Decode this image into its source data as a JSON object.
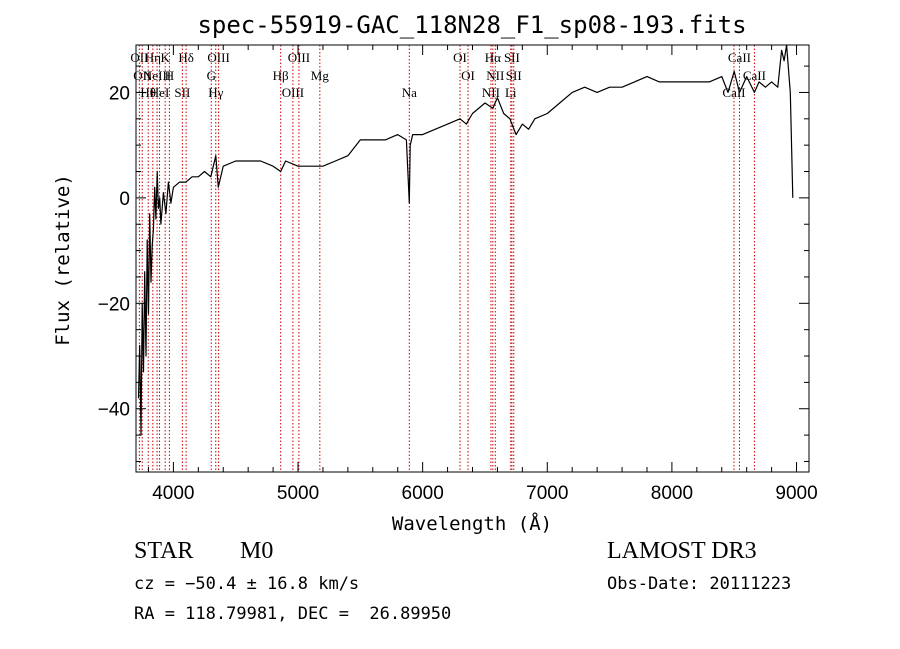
{
  "chart_data": {
    "type": "line",
    "title": "spec-55919-GAC_118N28_F1_sp08-193.fits",
    "xlabel": "Wavelength (Å)",
    "ylabel": "Flux (relative)",
    "xlim": [
      3700,
      9100
    ],
    "ylim": [
      -52,
      29
    ],
    "xticks": [
      4000,
      5000,
      6000,
      7000,
      8000,
      9000
    ],
    "xtick_labels": [
      "4000",
      "5000",
      "6000",
      "7000",
      "8000",
      "9000"
    ],
    "yticks": [
      -40,
      -20,
      0,
      20
    ],
    "ytick_labels": [
      "−40",
      "−20",
      "0",
      "20"
    ],
    "series": [
      {
        "name": "flux",
        "color": "#000000",
        "x": [
          3720,
          3730,
          3740,
          3750,
          3760,
          3770,
          3780,
          3790,
          3800,
          3810,
          3820,
          3830,
          3840,
          3850,
          3860,
          3870,
          3880,
          3890,
          3900,
          3920,
          3940,
          3960,
          3980,
          4000,
          4050,
          4100,
          4150,
          4200,
          4250,
          4300,
          4340,
          4360,
          4400,
          4500,
          4600,
          4700,
          4800,
          4861,
          4900,
          5000,
          5100,
          5200,
          5300,
          5400,
          5500,
          5600,
          5700,
          5800,
          5870,
          5893,
          5900,
          5920,
          6000,
          6100,
          6200,
          6300,
          6350,
          6400,
          6500,
          6563,
          6600,
          6650,
          6700,
          6750,
          6800,
          6850,
          6900,
          7000,
          7100,
          7200,
          7300,
          7400,
          7500,
          7600,
          7700,
          7800,
          7900,
          8000,
          8100,
          8200,
          8300,
          8400,
          8450,
          8500,
          8542,
          8600,
          8662,
          8700,
          8750,
          8800,
          8850,
          8880,
          8900,
          8920,
          8950,
          8970
        ],
        "y": [
          -38,
          -28,
          -45,
          -20,
          -33,
          -14,
          -30,
          -8,
          -22,
          -3,
          -16,
          -9,
          -6,
          2,
          -4,
          5,
          -2,
          0,
          -5,
          1,
          -3,
          3,
          -1,
          2,
          3,
          3,
          4,
          4,
          5,
          4,
          8,
          2,
          6,
          7,
          7,
          7,
          6,
          5,
          7,
          6,
          6,
          6,
          7,
          8,
          11,
          11,
          11,
          12,
          11,
          -1,
          10,
          12,
          12,
          13,
          14,
          15,
          14,
          16,
          18,
          17,
          19,
          16,
          15,
          12,
          14,
          13,
          15,
          16,
          18,
          20,
          21,
          20,
          21,
          21,
          22,
          23,
          22,
          22,
          22,
          22,
          22,
          23,
          20,
          24,
          20,
          23,
          20,
          22,
          21,
          22,
          21,
          28,
          26,
          29,
          20,
          0
        ]
      }
    ],
    "emission_lines": [
      {
        "wave": 3727,
        "label": "OII"
      },
      {
        "wave": 3750,
        "label": "OII"
      },
      {
        "wave": 3798,
        "label": "Hθ"
      },
      {
        "wave": 3835,
        "label": "Hη"
      },
      {
        "wave": 3869,
        "label": "NeIII"
      },
      {
        "wave": 3889,
        "label": "HeI"
      },
      {
        "wave": 3934,
        "label": "K"
      },
      {
        "wave": 3968,
        "label": "H"
      },
      {
        "wave": 4072,
        "label": "SII"
      },
      {
        "wave": 4102,
        "label": "Hδ"
      },
      {
        "wave": 4304,
        "label": "G"
      },
      {
        "wave": 4340,
        "label": "Hγ"
      },
      {
        "wave": 4363,
        "label": "OIII"
      },
      {
        "wave": 4861,
        "label": "Hβ"
      },
      {
        "wave": 4959,
        "label": "OIII"
      },
      {
        "wave": 5007,
        "label": "OIII"
      },
      {
        "wave": 5175,
        "label": "Mg"
      },
      {
        "wave": 5893,
        "label": "Na"
      },
      {
        "wave": 6300,
        "label": "OI"
      },
      {
        "wave": 6364,
        "label": "OI"
      },
      {
        "wave": 6548,
        "label": "NII"
      },
      {
        "wave": 6563,
        "label": "Hα"
      },
      {
        "wave": 6583,
        "label": "NII"
      },
      {
        "wave": 6707,
        "label": "Li"
      },
      {
        "wave": 6716,
        "label": "SII"
      },
      {
        "wave": 6731,
        "label": "SII"
      },
      {
        "wave": 8498,
        "label": "CaII"
      },
      {
        "wave": 8542,
        "label": "CaII"
      },
      {
        "wave": 8662,
        "label": "CaII"
      }
    ]
  },
  "info": {
    "class_label": "STAR",
    "subclass": "M0",
    "survey": "LAMOST DR3",
    "redshift_text": "cz = −50.4 ± 16.8 km/s",
    "obs_date_text": "Obs-Date: 20111223",
    "coords_text": "RA = 118.79981, DEC =  26.89950"
  }
}
